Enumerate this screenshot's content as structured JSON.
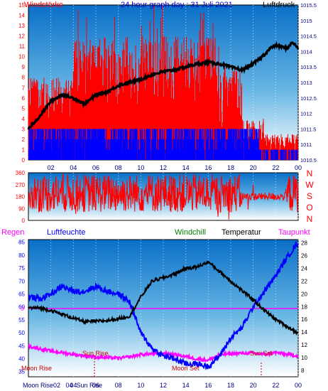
{
  "colors": {
    "wind": "#ff0000",
    "gust": "#ff0000",
    "windavg": "#0000ff",
    "pressure": "#000000",
    "dir": "#ff0000",
    "temp": "#000000",
    "hum": "#0000ff",
    "dew": "#ff00ff",
    "regen": "#ff00ff",
    "windchill": "#008000",
    "frame": "#000000",
    "tick": "#000080"
  },
  "chart_data": [
    {
      "type": "line",
      "title": "24 hour graph day : 31 Juli 2021",
      "left_label": "Windstärke",
      "right_label": "Luftdruck",
      "x_ticks": [
        "02",
        "04",
        "06",
        "08",
        "10",
        "12",
        "14",
        "16",
        "18",
        "20",
        "22",
        "00"
      ],
      "y_left_ticks": [
        "0",
        "1",
        "2",
        "3",
        "4",
        "5",
        "6",
        "7",
        "8",
        "9",
        "10",
        "11",
        "12",
        "13",
        "14",
        "15"
      ],
      "y_right_ticks": [
        "1010.5",
        "1011",
        "1011.5",
        "1012",
        "1012.5",
        "1013",
        "1013.5",
        "1014",
        "1014.5",
        "1015",
        "1015.5"
      ],
      "ylim_left": [
        0,
        15
      ],
      "ylim_right": [
        1010.5,
        1015.5
      ],
      "series": [
        {
          "axis": "right",
          "x": [
            0,
            1,
            2,
            3,
            4,
            5,
            6,
            7,
            8,
            9,
            10,
            11,
            12,
            13,
            14,
            15,
            16,
            17,
            18,
            19,
            20,
            21,
            21.5,
            22,
            23,
            23.5,
            24
          ],
          "values": [
            1011.5,
            1011.9,
            1012.4,
            1012.6,
            1012.5,
            1012.3,
            1012.6,
            1012.7,
            1012.9,
            1013.0,
            1013.1,
            1013.25,
            1013.35,
            1013.4,
            1013.5,
            1013.6,
            1013.65,
            1013.6,
            1013.5,
            1013.4,
            1013.6,
            1013.9,
            1014.1,
            1014.2,
            1014.1,
            1014.3,
            1014.1
          ]
        }
      ]
    },
    {
      "type": "scatter",
      "right_labels": [
        "N",
        "W",
        "S",
        "O",
        "N"
      ],
      "y_ticks": [
        "0",
        "90",
        "180",
        "270",
        "360"
      ],
      "ylim": [
        0,
        360
      ]
    },
    {
      "type": "line",
      "labels": {
        "regen": "Regen",
        "luftfeuchte": "Luftfeuchte",
        "windchill": "Windchill",
        "temperatur": "Temperatur",
        "taupunkt": "Taupunkt"
      },
      "x_ticks": [
        "02",
        "04",
        "06",
        "08",
        "10",
        "12",
        "14",
        "16",
        "18",
        "20",
        "22",
        "00"
      ],
      "y_left_ticks": [
        "35",
        "40",
        "45",
        "50",
        "55",
        "60",
        "65",
        "70",
        "75",
        "80",
        "85"
      ],
      "y_right_ticks": [
        "8",
        "10",
        "12",
        "14",
        "16",
        "18",
        "20",
        "22",
        "24",
        "26",
        "28"
      ],
      "ylim_left": [
        33,
        86
      ],
      "ylim_right": [
        7,
        28.5
      ],
      "zero_label": "0",
      "annotations": {
        "moon_rise": "Moon Rise",
        "sun_rise": "Sun Rise",
        "moon_set": "Moon Set",
        "sun_set": "Sun Set",
        "bottom_x_labels": "Moon Rise02   04  Sun Rise   "
      },
      "series": [
        {
          "name": "Temperatur",
          "axis": "right",
          "x": [
            0,
            1,
            2,
            3,
            4,
            5,
            6,
            7,
            8,
            9,
            10,
            11,
            12,
            13,
            14,
            15,
            16,
            17,
            18,
            19,
            20,
            21,
            22,
            23,
            24
          ],
          "values": [
            17.8,
            17.8,
            17.4,
            16.8,
            16.2,
            15.6,
            15.7,
            15.8,
            16.1,
            16.5,
            19.5,
            22.0,
            22.5,
            23.1,
            24.0,
            24.2,
            25.0,
            23.5,
            22.0,
            20.5,
            19.1,
            17.4,
            16.0,
            14.9,
            13.8
          ]
        },
        {
          "name": "Luftfeuchte",
          "axis": "left",
          "x": [
            0,
            1,
            2,
            3,
            4,
            5,
            6,
            7,
            8,
            9,
            10,
            11,
            12,
            13,
            14,
            15,
            16,
            17,
            18,
            19,
            20,
            21,
            22,
            23,
            24
          ],
          "values": [
            64,
            63,
            65,
            68,
            66,
            66,
            68,
            66,
            65,
            62,
            50,
            44,
            41,
            40,
            38,
            38,
            37,
            41,
            48,
            52,
            60,
            66,
            72,
            79,
            85
          ]
        },
        {
          "name": "Taupunkt",
          "axis": "right",
          "x": [
            0,
            1,
            2,
            3,
            4,
            5,
            6,
            7,
            8,
            9,
            10,
            11,
            12,
            13,
            14,
            15,
            16,
            17,
            18,
            19,
            20,
            21,
            22,
            23,
            24
          ],
          "values": [
            11.8,
            11.4,
            11.0,
            10.8,
            10.5,
            10.3,
            10.1,
            10.0,
            9.9,
            10.1,
            10.5,
            10.6,
            10.7,
            10.5,
            10.2,
            9.8,
            9.6,
            10.5,
            10.6,
            10.7,
            10.7,
            10.5,
            10.8,
            10.5,
            10.3
          ]
        }
      ]
    }
  ]
}
